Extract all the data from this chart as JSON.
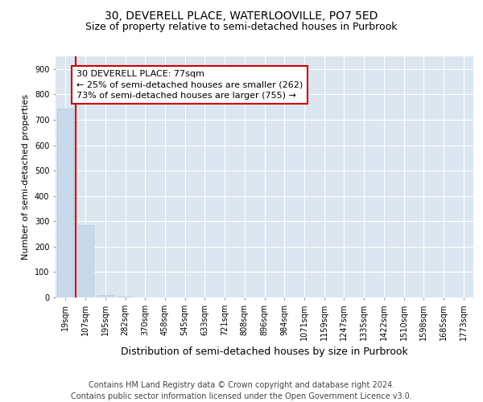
{
  "title": "30, DEVERELL PLACE, WATERLOOVILLE, PO7 5ED",
  "subtitle": "Size of property relative to semi-detached houses in Purbrook",
  "xlabel": "Distribution of semi-detached houses by size in Purbrook",
  "ylabel": "Number of semi-detached properties",
  "categories": [
    "19sqm",
    "107sqm",
    "195sqm",
    "282sqm",
    "370sqm",
    "458sqm",
    "545sqm",
    "633sqm",
    "721sqm",
    "808sqm",
    "896sqm",
    "984sqm",
    "1071sqm",
    "1159sqm",
    "1247sqm",
    "1335sqm",
    "1422sqm",
    "1510sqm",
    "1598sqm",
    "1685sqm",
    "1773sqm"
  ],
  "values": [
    745,
    285,
    10,
    2,
    1,
    0,
    0,
    0,
    0,
    0,
    0,
    0,
    0,
    0,
    0,
    0,
    0,
    0,
    0,
    0,
    0
  ],
  "bar_color": "#c8d9ec",
  "bar_edgecolor": "#b0c8e0",
  "property_line_color": "#cc0000",
  "property_line_x": 0.5,
  "annotation_text": "30 DEVERELL PLACE: 77sqm\n← 25% of semi-detached houses are smaller (262)\n73% of semi-detached houses are larger (755) →",
  "annotation_box_facecolor": "#ffffff",
  "annotation_box_edgecolor": "#cc0000",
  "ylim": [
    0,
    950
  ],
  "yticks": [
    0,
    100,
    200,
    300,
    400,
    500,
    600,
    700,
    800,
    900
  ],
  "background_color": "#dce6f1",
  "grid_color": "#ffffff",
  "footer_line1": "Contains HM Land Registry data © Crown copyright and database right 2024.",
  "footer_line2": "Contains public sector information licensed under the Open Government Licence v3.0.",
  "title_fontsize": 10,
  "subtitle_fontsize": 9,
  "xlabel_fontsize": 9,
  "ylabel_fontsize": 8,
  "tick_fontsize": 7,
  "annotation_fontsize": 8,
  "footer_fontsize": 7
}
